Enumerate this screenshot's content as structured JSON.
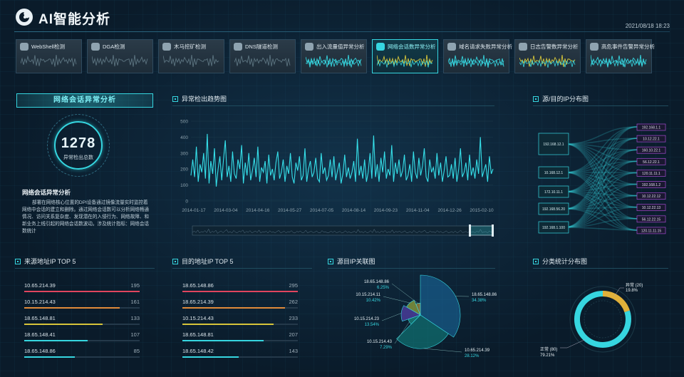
{
  "header": {
    "title": "AI智能分析",
    "datetime": "2021/08/18  18:23"
  },
  "tabs": [
    {
      "label": "WebShell检测",
      "active": false
    },
    {
      "label": "DGA检测",
      "active": false
    },
    {
      "label": "木马挖矿检测",
      "active": false
    },
    {
      "label": "DNS隧道检测",
      "active": false
    },
    {
      "label": "出入流量值异常分析",
      "active": false
    },
    {
      "label": "网络会话数异常分析",
      "active": true
    },
    {
      "label": "域名请求失败异常分析",
      "active": false
    },
    {
      "label": "日志告警数异常分析",
      "active": false
    },
    {
      "label": "高危事件告警异常分析",
      "active": false
    }
  ],
  "left_panel": {
    "title": "网络会话异常分析",
    "count": "1278",
    "count_label": "异常检出总数",
    "desc_title": "网络会话异常分析",
    "desc_text": "部署在网络核心位置的DPI设备通过镜像流量实时监控着网络中会话的建立和删除。通过网络会话数可以分析网络畅通情况、访问关系复杂度、发现潜在的入侵行为、网络故障、和新业务上线引起的网络会话数波动。涉及统计指标：网络会话数统计"
  },
  "trend": {
    "title": "异常检出趋势图",
    "chart_data": {
      "type": "line",
      "title": "",
      "xlabel": "",
      "ylabel": "",
      "ylim": [
        0,
        500
      ],
      "yticks": [
        0,
        100,
        200,
        300,
        400,
        500
      ],
      "xticks": [
        "2014-01-17",
        "2014-03-04",
        "2014-04-16",
        "2014-05-27",
        "2014-07-05",
        "2014-08-14",
        "2014-09-23",
        "2014-11-04",
        "2014-12-26",
        "2015-02-10"
      ],
      "values": [
        160,
        260,
        150,
        340,
        120,
        230,
        180,
        300,
        140,
        420,
        110,
        250,
        170,
        330,
        90,
        200,
        280,
        130,
        260,
        380,
        150,
        220,
        120,
        310,
        170,
        140,
        260,
        200,
        350,
        110,
        240,
        160,
        300,
        130,
        190,
        270,
        150,
        340,
        120,
        210,
        180,
        250,
        110,
        290,
        160,
        200,
        130,
        240,
        310,
        140,
        180,
        260,
        120,
        220,
        170,
        300,
        150,
        110,
        240,
        190,
        280,
        130,
        160,
        330,
        120,
        200,
        250,
        150,
        180,
        270,
        140,
        120,
        300,
        170,
        210,
        130,
        160,
        260,
        150,
        280,
        130,
        190,
        240,
        110,
        170,
        290,
        150,
        210,
        140,
        180,
        250,
        120,
        390,
        160,
        220,
        140,
        260,
        120,
        180,
        300,
        140,
        410,
        150,
        230,
        120,
        270,
        180,
        310,
        140,
        200,
        160,
        350,
        120,
        240,
        170,
        260,
        150,
        190,
        290,
        130,
        160,
        230,
        120,
        310,
        180,
        140,
        270,
        160,
        220,
        330,
        150,
        120,
        260,
        180,
        210,
        140,
        300,
        160,
        240,
        120,
        190,
        280,
        150,
        160,
        230,
        140,
        270,
        120,
        200,
        330,
        150,
        180,
        240,
        130,
        290,
        160,
        210,
        140,
        260,
        170,
        400,
        150,
        190,
        230,
        120,
        280,
        170,
        200
      ]
    }
  },
  "sankey": {
    "title": "源/目的IP分布图",
    "sources": [
      "192.168.12.1",
      "10.168.12.1",
      "172.10.11.1",
      "192.168.56.20",
      "192.168.1.100"
    ],
    "targets": [
      "192.168.1.1",
      "10.12.22.1",
      "160.10.22.1",
      "56.12.22.1",
      "120.11.11.1",
      "192.168.1.2",
      "10.12.22.12",
      "10.12.22.13",
      "56.12.22.15",
      "120.11.11.15"
    ]
  },
  "src_top5": {
    "title": "来源地址IP TOP 5",
    "rows": [
      {
        "ip": "10.65.214.39",
        "value": 195,
        "color": "#e0455e"
      },
      {
        "ip": "10.15.214.43",
        "value": 161,
        "color": "#e08a3a"
      },
      {
        "ip": "18.65.148.81",
        "value": 133,
        "color": "#d6c43a"
      },
      {
        "ip": "18.65.148.41",
        "value": 107,
        "color": "#36d6e0"
      },
      {
        "ip": "18.65.148.86",
        "value": 85,
        "color": "#36d6e0"
      }
    ]
  },
  "dst_top5": {
    "title": "目的地址IP TOP 5",
    "rows": [
      {
        "ip": "18.65.148.86",
        "value": 295,
        "color": "#e0455e"
      },
      {
        "ip": "18.65.214.39",
        "value": 262,
        "color": "#e08a3a"
      },
      {
        "ip": "10.15.214.43",
        "value": 233,
        "color": "#d6c43a"
      },
      {
        "ip": "18.65.148.81",
        "value": 207,
        "color": "#36d6e0"
      },
      {
        "ip": "18.65.148.42",
        "value": 143,
        "color": "#36d6e0"
      }
    ]
  },
  "relation": {
    "title": "源目IP关联图",
    "chart_data": {
      "type": "pie",
      "slices": [
        {
          "label": "18.65.148.86",
          "percent": "34.38%",
          "value": 34.38,
          "color": "#1b6fa8"
        },
        {
          "label": "10.65.214.39",
          "percent": "28.12%",
          "value": 28.12,
          "color": "#138a86"
        },
        {
          "label": "10.15.214.43",
          "percent": "7.29%",
          "value": 7.29,
          "color": "#1fae9a"
        },
        {
          "label": "10.15.214.23",
          "percent": "13.54%",
          "value": 13.54,
          "color": "#6a4ad0"
        },
        {
          "label": "10.15.214.11",
          "percent": "10.42%",
          "value": 10.42,
          "color": "#c0d040"
        },
        {
          "label": "18.65.148.86",
          "percent": "6.25%",
          "value": 6.25,
          "color": "#e0b03a"
        }
      ]
    }
  },
  "category": {
    "title": "分类统计分布图",
    "chart_data": {
      "type": "pie",
      "slices": [
        {
          "label": "异常 (20)",
          "percent": "19.8%",
          "value": 19.8,
          "color": "#e0b03a"
        },
        {
          "label": "正常 (80)",
          "percent": "79.21%",
          "value": 79.21,
          "color": "#36d6e0"
        }
      ]
    }
  }
}
